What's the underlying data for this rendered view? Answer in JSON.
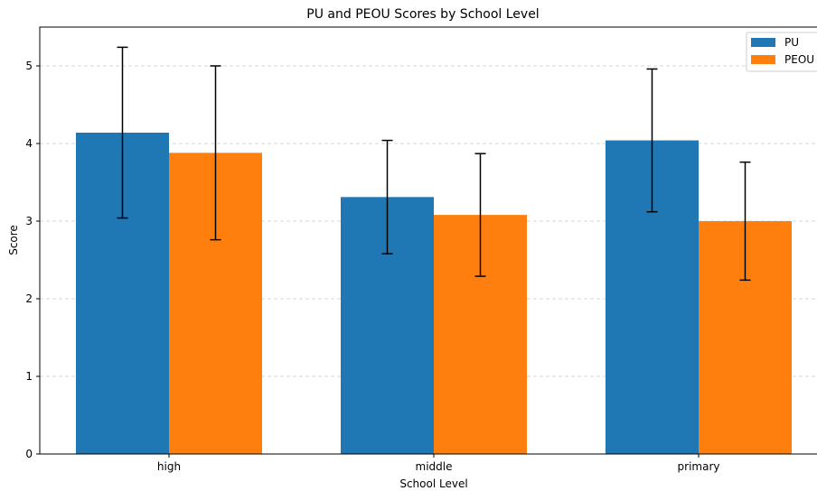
{
  "chart_data": {
    "type": "bar",
    "title": "PU and PEOU Scores by School Level",
    "xlabel": "School Level",
    "ylabel": "Score",
    "categories": [
      "high",
      "middle",
      "primary"
    ],
    "series": [
      {
        "name": "PU",
        "color": "#1f77b4",
        "values": [
          4.14,
          3.31,
          4.04
        ],
        "errors": [
          1.1,
          0.73,
          0.92
        ]
      },
      {
        "name": "PEOU",
        "color": "#ff7f0e",
        "values": [
          3.88,
          3.08,
          3.0
        ],
        "errors": [
          1.12,
          0.79,
          0.76
        ]
      }
    ],
    "ylim": [
      0,
      5.5
    ],
    "yticks": [
      0,
      1,
      2,
      3,
      4,
      5
    ],
    "grid": "y-dashed",
    "legend": "top-right"
  }
}
